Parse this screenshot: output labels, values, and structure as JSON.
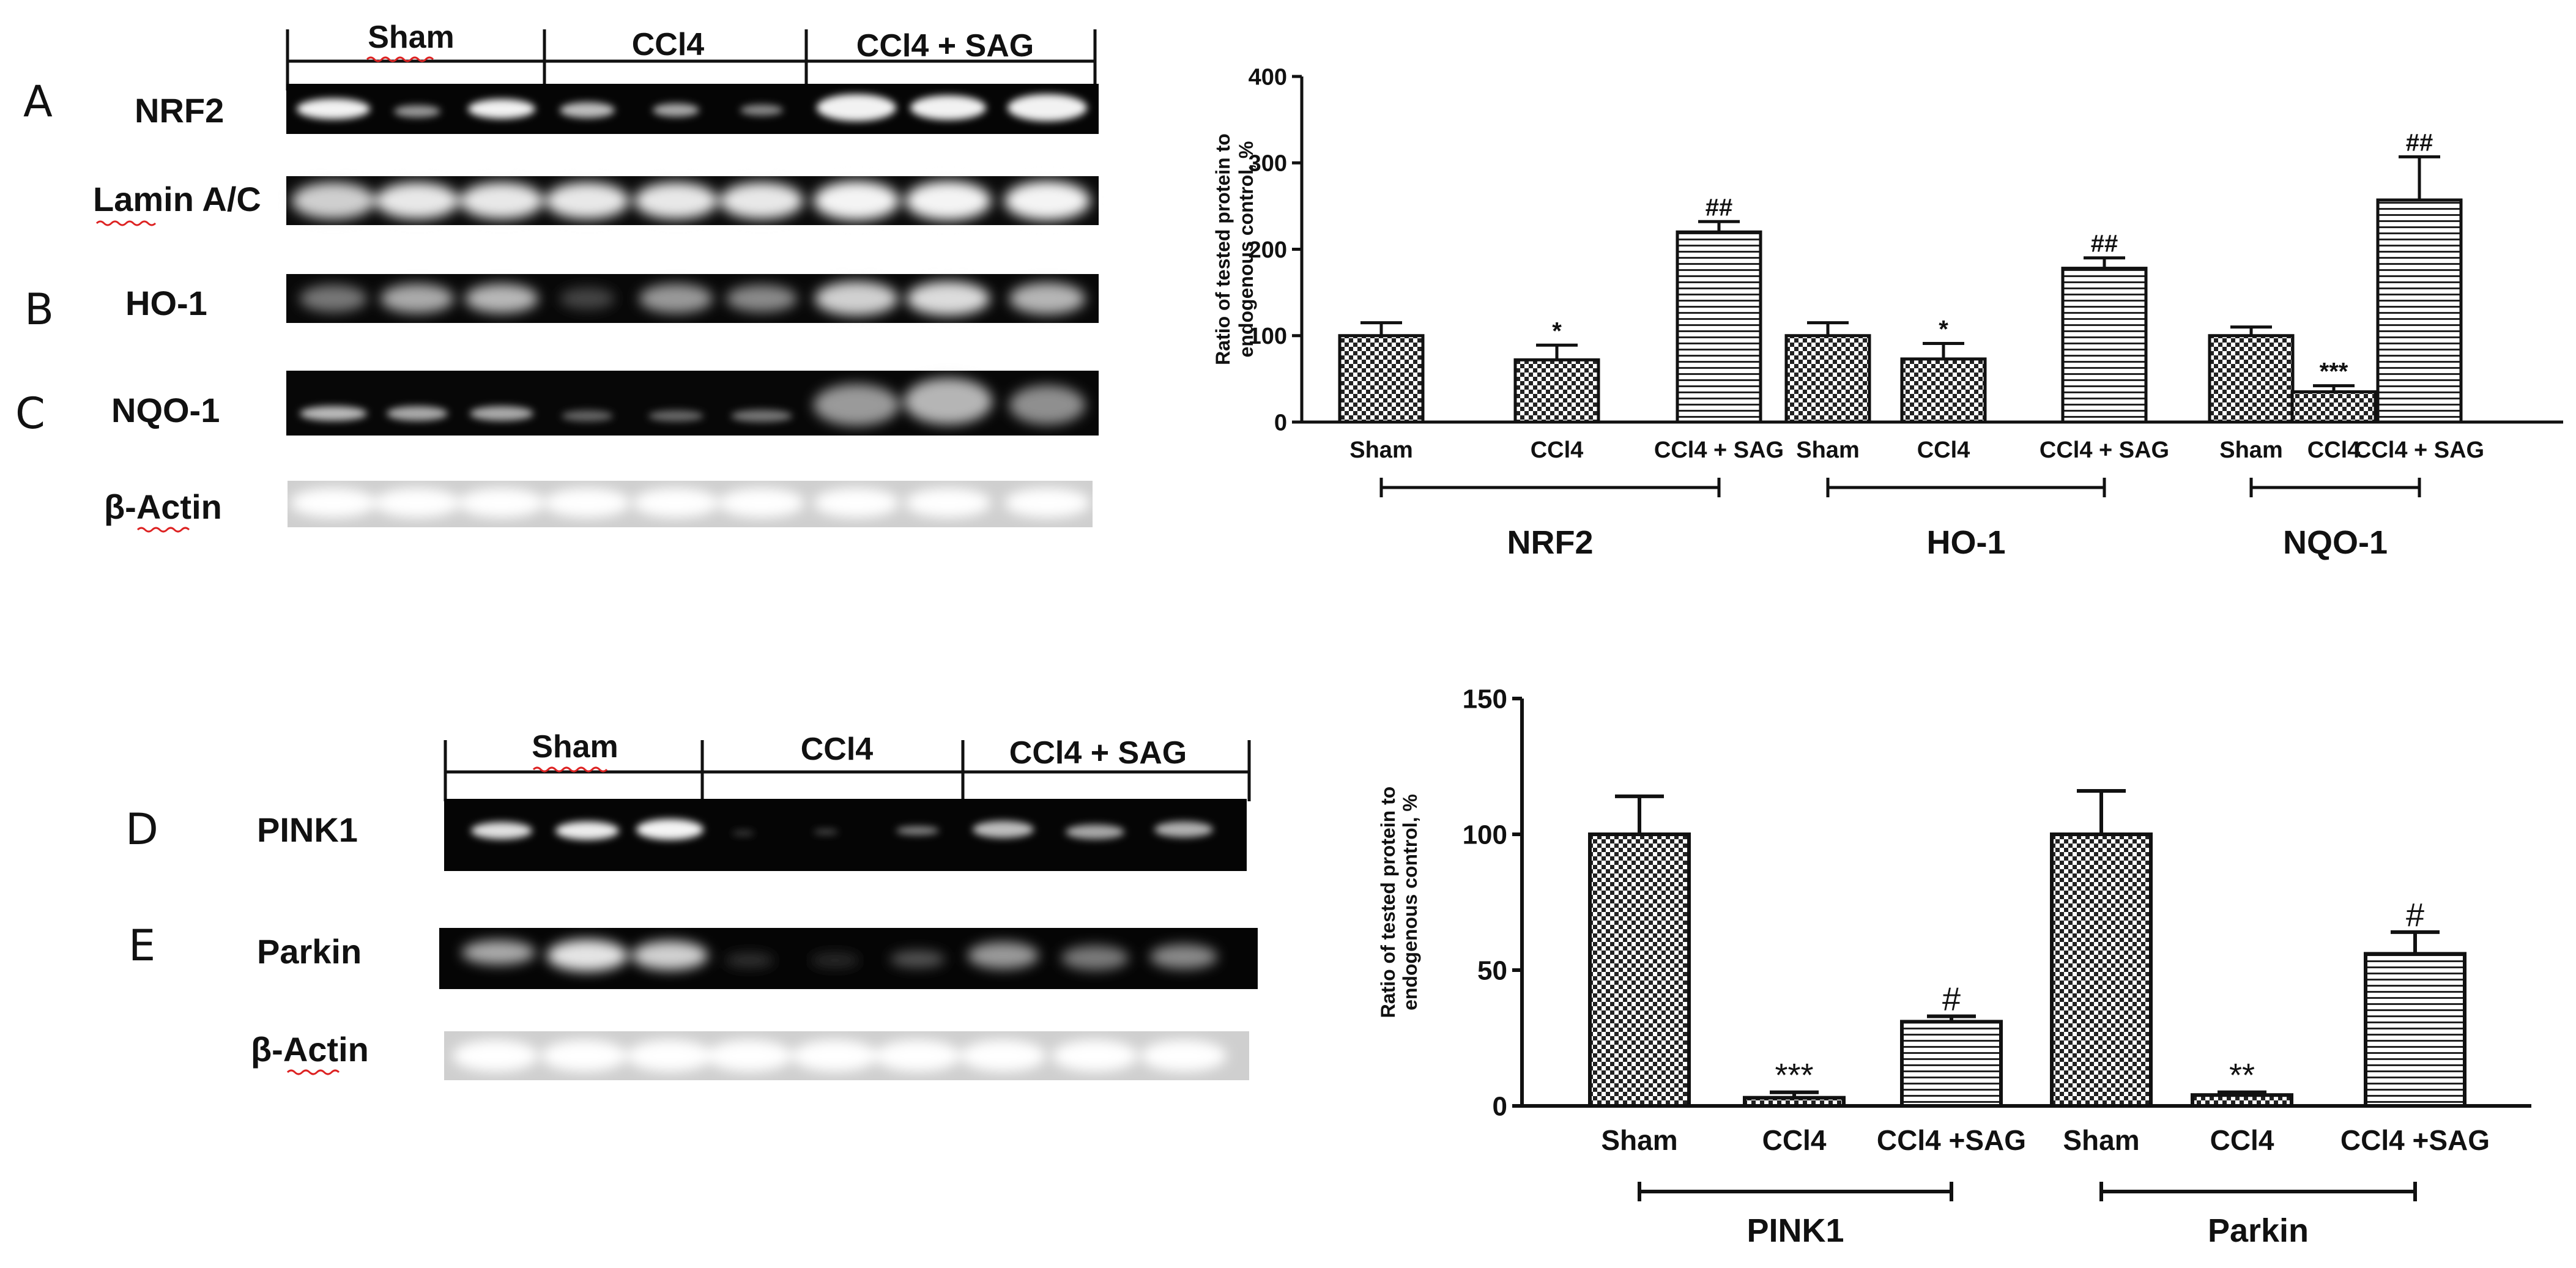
{
  "top_blots": {
    "groups": [
      "Sham",
      "CCl4",
      "CCl4 + SAG"
    ],
    "rows": [
      {
        "letter": "A",
        "label": "NRF2"
      },
      {
        "letter": "",
        "label": "Lamin A/C"
      },
      {
        "letter": "B",
        "label": "HO-1"
      },
      {
        "letter": "C",
        "label": "NQO-1"
      },
      {
        "letter": "",
        "label": "β-Actin"
      }
    ]
  },
  "bottom_blots": {
    "groups": [
      "Sham",
      "CCl4",
      "CCl4 + SAG"
    ],
    "rows": [
      {
        "letter": "D",
        "label": "PINK1"
      },
      {
        "letter": "E",
        "label": "Parkin"
      },
      {
        "letter": "",
        "label": "β-Actin"
      }
    ]
  },
  "chart_data": [
    {
      "type": "bar",
      "title": "",
      "xlabel": "",
      "ylabel": "Ratio of tested protein to endogenous control, %",
      "ylim": [
        0,
        400
      ],
      "yticks": [
        0,
        100,
        200,
        300,
        400
      ],
      "categories": [
        "Sham",
        "CCl4",
        "CCl4 + SAG",
        "Sham",
        "CCl4",
        "CCl4 + SAG",
        "Sham",
        "CCl4",
        "CCl4 + SAG"
      ],
      "values": [
        100,
        72,
        220,
        100,
        73,
        178,
        100,
        35,
        257
      ],
      "errors": [
        15,
        17,
        12,
        15,
        18,
        12,
        10,
        7,
        50
      ],
      "significance": [
        "",
        "*",
        "##",
        "",
        "*",
        "##",
        "",
        "***",
        "##"
      ],
      "patterns": [
        "check",
        "check",
        "hlines",
        "check",
        "check",
        "hlines",
        "check",
        "check",
        "hlines"
      ],
      "protein_groups": [
        "NRF2",
        "HO-1",
        "NQO-1"
      ],
      "grid": false
    },
    {
      "type": "bar",
      "title": "",
      "xlabel": "",
      "ylabel": "Ratio of tested protein to endogenous control, %",
      "ylim": [
        0,
        150
      ],
      "yticks": [
        0,
        50,
        100,
        150
      ],
      "categories": [
        "Sham",
        "CCl4",
        "CCl4 +SAG",
        "Sham",
        "CCl4",
        "CCl4 +SAG"
      ],
      "values": [
        100,
        3,
        31,
        100,
        4,
        56
      ],
      "errors": [
        14,
        2,
        2,
        16,
        1,
        8
      ],
      "significance": [
        "",
        "***",
        "#",
        "",
        "**",
        "#"
      ],
      "patterns": [
        "check",
        "check",
        "hlines",
        "check",
        "check",
        "hlines"
      ],
      "protein_groups": [
        "PINK1",
        "Parkin"
      ],
      "grid": false
    }
  ]
}
